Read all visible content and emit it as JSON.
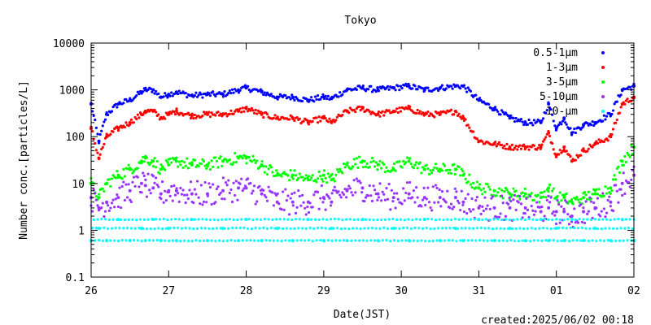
{
  "chart_data": {
    "type": "scatter",
    "title": "Tokyo",
    "xlabel": "Date(JST)",
    "ylabel": "Number conc.[particles/L]",
    "yscale": "log",
    "ylim": [
      0.1,
      10000
    ],
    "yticks": [
      {
        "value": 0.1,
        "label": "0.1"
      },
      {
        "value": 1,
        "label": "1"
      },
      {
        "value": 10,
        "label": "10"
      },
      {
        "value": 100,
        "label": "100"
      },
      {
        "value": 1000,
        "label": "1000"
      },
      {
        "value": 10000,
        "label": "10000"
      }
    ],
    "xlim": [
      0,
      7
    ],
    "xticks": [
      {
        "value": 0,
        "label": "26"
      },
      {
        "value": 1,
        "label": "27"
      },
      {
        "value": 2,
        "label": "28"
      },
      {
        "value": 3,
        "label": "29"
      },
      {
        "value": 4,
        "label": "30"
      },
      {
        "value": 5,
        "label": "31"
      },
      {
        "value": 6,
        "label": "01"
      },
      {
        "value": 7,
        "label": "02"
      }
    ],
    "legend_position": "top-right",
    "grid": false,
    "series": [
      {
        "name": "0.5-1μm",
        "color": "#0000ff",
        "x": [
          0,
          0.1,
          0.2,
          0.35,
          0.5,
          0.65,
          0.7,
          0.8,
          0.9,
          1.0,
          1.1,
          1.3,
          1.5,
          1.7,
          1.9,
          2.0,
          2.2,
          2.4,
          2.6,
          2.8,
          3.0,
          3.1,
          3.3,
          3.5,
          3.7,
          3.9,
          4.1,
          4.3,
          4.5,
          4.7,
          4.8,
          5.0,
          5.2,
          5.4,
          5.6,
          5.8,
          5.9,
          6.0,
          6.1,
          6.2,
          6.35,
          6.5,
          6.7,
          6.85,
          7.0
        ],
        "y": [
          500,
          80,
          300,
          500,
          600,
          900,
          1000,
          1000,
          700,
          800,
          900,
          750,
          800,
          800,
          1000,
          1100,
          900,
          700,
          700,
          600,
          700,
          650,
          1000,
          1100,
          1000,
          1100,
          1200,
          1000,
          1100,
          1200,
          1200,
          600,
          400,
          250,
          200,
          200,
          500,
          150,
          250,
          120,
          180,
          200,
          300,
          1000,
          1200
        ]
      },
      {
        "name": "1-3μm",
        "color": "#ff0000",
        "x": [
          0,
          0.1,
          0.2,
          0.35,
          0.5,
          0.65,
          0.7,
          0.8,
          0.9,
          1.0,
          1.1,
          1.3,
          1.5,
          1.7,
          1.9,
          2.0,
          2.2,
          2.4,
          2.6,
          2.8,
          3.0,
          3.1,
          3.3,
          3.5,
          3.7,
          3.9,
          4.1,
          4.3,
          4.5,
          4.7,
          4.8,
          5.0,
          5.2,
          5.4,
          5.6,
          5.8,
          5.9,
          6.0,
          6.1,
          6.2,
          6.35,
          6.5,
          6.7,
          6.85,
          7.0
        ],
        "y": [
          150,
          35,
          100,
          150,
          200,
          300,
          350,
          350,
          250,
          300,
          350,
          280,
          300,
          300,
          350,
          400,
          300,
          250,
          250,
          200,
          250,
          200,
          350,
          400,
          300,
          350,
          400,
          300,
          300,
          350,
          250,
          80,
          70,
          60,
          60,
          60,
          120,
          40,
          60,
          30,
          50,
          70,
          100,
          500,
          700
        ]
      },
      {
        "name": "3-5μm",
        "color": "#00ff00",
        "x": [
          0,
          0.1,
          0.2,
          0.35,
          0.5,
          0.65,
          0.7,
          0.8,
          0.9,
          1.0,
          1.1,
          1.3,
          1.5,
          1.7,
          1.9,
          2.0,
          2.2,
          2.4,
          2.6,
          2.8,
          3.0,
          3.1,
          3.3,
          3.5,
          3.7,
          3.9,
          4.1,
          4.3,
          4.5,
          4.7,
          4.8,
          5.0,
          5.2,
          5.4,
          5.6,
          5.8,
          5.9,
          6.0,
          6.1,
          6.2,
          6.35,
          6.5,
          6.7,
          6.85,
          7.0
        ],
        "y": [
          10,
          5,
          10,
          15,
          20,
          30,
          35,
          30,
          20,
          25,
          30,
          25,
          25,
          30,
          35,
          35,
          25,
          15,
          15,
          12,
          15,
          12,
          25,
          30,
          25,
          20,
          30,
          20,
          20,
          20,
          15,
          8,
          7,
          6,
          6,
          5,
          8,
          5,
          5,
          4,
          5,
          6,
          8,
          30,
          60
        ]
      },
      {
        "name": "5-10μm",
        "color": "#9933ff",
        "x": [
          0,
          0.1,
          0.2,
          0.35,
          0.5,
          0.65,
          0.7,
          0.8,
          0.9,
          1.0,
          1.1,
          1.3,
          1.5,
          1.7,
          1.9,
          2.0,
          2.2,
          2.4,
          2.6,
          2.8,
          3.0,
          3.1,
          3.3,
          3.5,
          3.7,
          3.9,
          4.1,
          4.3,
          4.5,
          4.7,
          4.8,
          5.0,
          5.2,
          5.4,
          5.6,
          5.8,
          5.9,
          6.0,
          6.1,
          6.2,
          6.35,
          6.5,
          6.7,
          6.85,
          7.0
        ],
        "y": [
          5,
          3,
          4,
          5,
          7,
          10,
          9,
          8,
          6,
          7,
          7,
          6,
          6,
          7,
          8,
          8,
          6,
          4,
          4,
          4,
          5,
          4,
          7,
          8,
          6,
          5,
          6,
          5,
          5,
          5,
          4,
          3,
          3,
          3,
          3,
          2.5,
          3,
          2.5,
          2.5,
          2,
          2.5,
          3,
          4,
          10,
          15
        ]
      },
      {
        "name": "10-μm",
        "color": "#00ffff",
        "x": [
          0,
          0.1,
          0.2,
          0.35,
          0.5,
          0.65,
          0.7,
          0.8,
          0.9,
          1.0,
          1.1,
          1.3,
          1.5,
          1.7,
          1.9,
          2.0,
          2.2,
          2.4,
          2.6,
          2.8,
          3.0,
          3.1,
          3.3,
          3.5,
          3.7,
          3.9,
          4.1,
          4.3,
          4.5,
          4.7,
          4.8,
          5.0,
          5.2,
          5.4,
          5.6,
          5.8,
          5.9,
          6.0,
          6.1,
          6.2,
          6.35,
          6.5,
          6.7,
          6.85,
          7.0
        ],
        "y": [
          0.6,
          1.1,
          0.6,
          1.7,
          0.6,
          1.1,
          0.6,
          1.7,
          0.6,
          1.1,
          0.6,
          1.7,
          0.6,
          1.1,
          0.6,
          1.7,
          0.6,
          1.1,
          0.6,
          1.7,
          0.6,
          1.1,
          0.6,
          1.7,
          0.6,
          1.1,
          0.6,
          1.7,
          0.6,
          1.1,
          0.6,
          1.7,
          0.6,
          1.1,
          0.6,
          1.7,
          0.6,
          1.1,
          0.6,
          1.7,
          0.6,
          1.1,
          0.6,
          1.7,
          0.6
        ]
      }
    ]
  },
  "footer": {
    "created": "created:2025/06/02 00:18"
  }
}
